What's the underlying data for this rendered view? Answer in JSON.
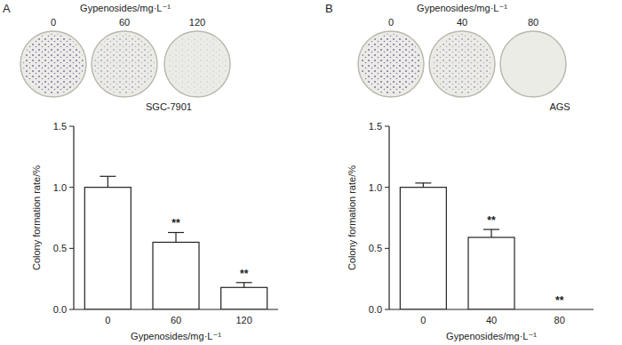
{
  "chart_data": [
    {
      "type": "bar",
      "panel_label": "A",
      "title": "SGC-7901",
      "image_title": "Gypenosides/mg·L⁻¹",
      "image_labels": [
        "0",
        "60",
        "120"
      ],
      "x_label": "Gypenosides/mg·L⁻¹",
      "y_label": "Colony formation rate/%",
      "categories": [
        "0",
        "60",
        "120"
      ],
      "values": [
        1.0,
        0.55,
        0.18
      ],
      "errors": [
        0.09,
        0.08,
        0.04
      ],
      "annotations": [
        {
          "category": "60",
          "text": "**"
        },
        {
          "category": "120",
          "text": "**"
        }
      ],
      "color": "#ffffff",
      "ylim": [
        0,
        1.5
      ],
      "yticks": [
        {
          "value": 0,
          "label": "0.0"
        },
        0.5,
        {
          "value": 1,
          "label": "1.0"
        },
        1.5
      ],
      "grid": false
    },
    {
      "type": "bar",
      "panel_label": "B",
      "title": "AGS",
      "image_title": "Gypenosides/mg·L⁻¹",
      "image_labels": [
        "0",
        "40",
        "80"
      ],
      "x_label": "Gypenosides/mg·L⁻¹",
      "y_label": "Colony formation rate/%",
      "categories": [
        "0",
        "40",
        "80"
      ],
      "values": [
        1.0,
        0.59,
        0.0
      ],
      "errors": [
        0.035,
        0.065,
        0.0
      ],
      "annotations": [
        {
          "category": "40",
          "text": "**"
        },
        {
          "category": "80",
          "text": "**"
        }
      ],
      "color": "#ffffff",
      "ylim": [
        0,
        1.5
      ],
      "yticks": [
        {
          "value": 0,
          "label": "0.0"
        },
        0.5,
        {
          "value": 1,
          "label": "1.0"
        },
        1.5
      ],
      "grid": false
    }
  ]
}
